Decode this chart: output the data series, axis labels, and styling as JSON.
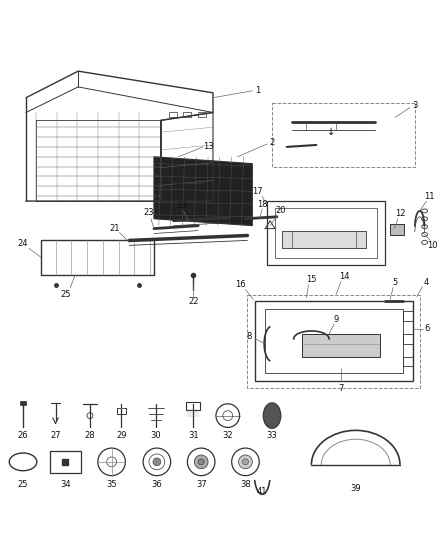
{
  "bg_color": "#ffffff",
  "fig_width": 4.38,
  "fig_height": 5.33,
  "dpi": 100,
  "line_color": "#333333",
  "light_color": "#888888",
  "label_fontsize": 6.0
}
